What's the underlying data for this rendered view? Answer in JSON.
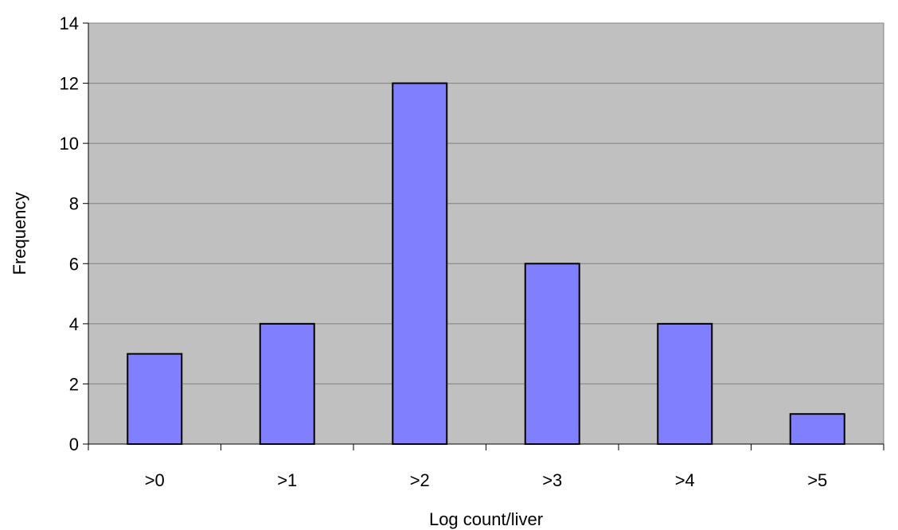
{
  "chart_data": {
    "type": "bar",
    "categories": [
      ">0",
      ">1",
      ">2",
      ">3",
      ">4",
      ">5"
    ],
    "values": [
      3,
      4,
      12,
      6,
      4,
      1
    ],
    "title": "",
    "xlabel": "Log count/liver",
    "ylabel": "Frequency",
    "ylim": [
      0,
      14
    ],
    "yticks": [
      0,
      2,
      4,
      6,
      8,
      10,
      12,
      14
    ],
    "grid": true,
    "legend": "none",
    "colors": {
      "plot_background": "#c0c0c0",
      "bar_fill": "#8080ff",
      "bar_stroke": "#000000",
      "gridline": "#808080",
      "axis": "#000000"
    }
  }
}
